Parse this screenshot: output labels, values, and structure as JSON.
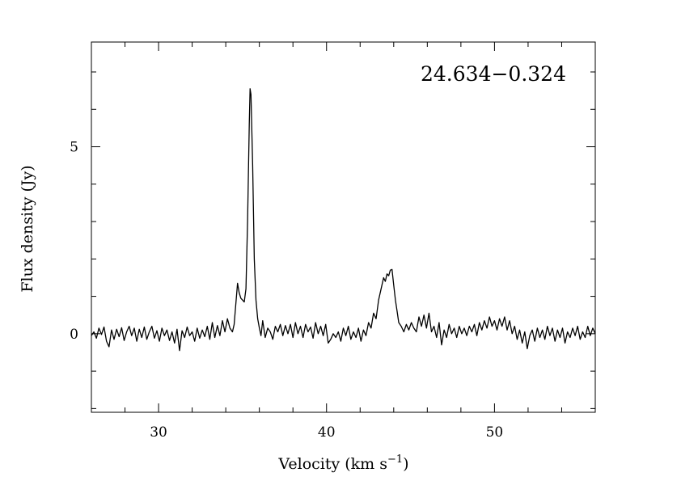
{
  "chart_data": {
    "type": "line",
    "title": "",
    "annotation": "24.634−0.324",
    "xlabel": "Velocity (km s",
    "xlabel_sup": "−1",
    "xlabel_close": ")",
    "ylabel": "Flux density (Jy)",
    "xlim": [
      26.0,
      56.0
    ],
    "ylim": [
      -2.1,
      7.8
    ],
    "xticks_major": [
      30,
      40,
      50
    ],
    "xticks_major_labels": [
      "30",
      "40",
      "50"
    ],
    "yticks_major": [
      0,
      5
    ],
    "yticks_major_labels": [
      "0",
      "5"
    ],
    "grid": false,
    "line_color": "#000000",
    "series": [
      {
        "values": [
          [
            26.0,
            -0.05
          ],
          [
            26.15,
            0.05
          ],
          [
            26.3,
            -0.12
          ],
          [
            26.45,
            0.15
          ],
          [
            26.6,
            -0.02
          ],
          [
            26.75,
            0.18
          ],
          [
            26.9,
            -0.2
          ],
          [
            27.05,
            -0.35
          ],
          [
            27.2,
            0.1
          ],
          [
            27.35,
            -0.15
          ],
          [
            27.5,
            0.12
          ],
          [
            27.65,
            -0.08
          ],
          [
            27.8,
            0.16
          ],
          [
            27.95,
            -0.18
          ],
          [
            28.1,
            0.05
          ],
          [
            28.25,
            0.2
          ],
          [
            28.4,
            -0.05
          ],
          [
            28.55,
            0.15
          ],
          [
            28.7,
            -0.2
          ],
          [
            28.85,
            0.12
          ],
          [
            29.0,
            -0.1
          ],
          [
            29.15,
            0.18
          ],
          [
            29.3,
            -0.15
          ],
          [
            29.45,
            0.05
          ],
          [
            29.6,
            0.2
          ],
          [
            29.75,
            -0.12
          ],
          [
            29.9,
            0.08
          ],
          [
            30.05,
            -0.2
          ],
          [
            30.2,
            0.15
          ],
          [
            30.35,
            -0.05
          ],
          [
            30.5,
            0.1
          ],
          [
            30.65,
            -0.18
          ],
          [
            30.8,
            0.05
          ],
          [
            30.95,
            -0.25
          ],
          [
            31.1,
            0.12
          ],
          [
            31.25,
            -0.45
          ],
          [
            31.4,
            0.08
          ],
          [
            31.55,
            -0.1
          ],
          [
            31.7,
            0.18
          ],
          [
            31.85,
            -0.05
          ],
          [
            32.0,
            0.05
          ],
          [
            32.15,
            -0.2
          ],
          [
            32.3,
            0.15
          ],
          [
            32.45,
            -0.12
          ],
          [
            32.6,
            0.1
          ],
          [
            32.75,
            -0.08
          ],
          [
            32.9,
            0.2
          ],
          [
            33.05,
            -0.15
          ],
          [
            33.2,
            0.3
          ],
          [
            33.35,
            -0.1
          ],
          [
            33.5,
            0.22
          ],
          [
            33.65,
            -0.05
          ],
          [
            33.8,
            0.35
          ],
          [
            33.95,
            0.05
          ],
          [
            34.1,
            0.4
          ],
          [
            34.25,
            0.15
          ],
          [
            34.4,
            0.05
          ],
          [
            34.5,
            0.25
          ],
          [
            34.6,
            0.8
          ],
          [
            34.7,
            1.35
          ],
          [
            34.8,
            1.1
          ],
          [
            34.9,
            0.95
          ],
          [
            35.0,
            0.9
          ],
          [
            35.1,
            0.85
          ],
          [
            35.2,
            1.2
          ],
          [
            35.3,
            3.0
          ],
          [
            35.4,
            5.6
          ],
          [
            35.45,
            6.55
          ],
          [
            35.5,
            6.4
          ],
          [
            35.6,
            4.5
          ],
          [
            35.7,
            2.0
          ],
          [
            35.8,
            0.9
          ],
          [
            35.9,
            0.4
          ],
          [
            36.0,
            0.15
          ],
          [
            36.1,
            -0.05
          ],
          [
            36.2,
            0.35
          ],
          [
            36.35,
            -0.1
          ],
          [
            36.5,
            0.15
          ],
          [
            36.65,
            0.05
          ],
          [
            36.8,
            -0.15
          ],
          [
            36.95,
            0.2
          ],
          [
            37.1,
            0.05
          ],
          [
            37.25,
            0.25
          ],
          [
            37.4,
            -0.05
          ],
          [
            37.55,
            0.22
          ],
          [
            37.7,
            0.0
          ],
          [
            37.85,
            0.25
          ],
          [
            38.0,
            -0.1
          ],
          [
            38.15,
            0.3
          ],
          [
            38.3,
            0.0
          ],
          [
            38.45,
            0.2
          ],
          [
            38.6,
            -0.1
          ],
          [
            38.75,
            0.25
          ],
          [
            38.9,
            0.05
          ],
          [
            39.05,
            0.18
          ],
          [
            39.2,
            -0.12
          ],
          [
            39.35,
            0.3
          ],
          [
            39.5,
            0.0
          ],
          [
            39.65,
            0.2
          ],
          [
            39.8,
            -0.05
          ],
          [
            39.95,
            0.25
          ],
          [
            40.1,
            -0.25
          ],
          [
            40.25,
            -0.15
          ],
          [
            40.4,
            0.0
          ],
          [
            40.55,
            -0.1
          ],
          [
            40.7,
            0.05
          ],
          [
            40.85,
            -0.2
          ],
          [
            41.0,
            0.15
          ],
          [
            41.15,
            -0.05
          ],
          [
            41.3,
            0.2
          ],
          [
            41.45,
            -0.15
          ],
          [
            41.6,
            0.05
          ],
          [
            41.75,
            -0.1
          ],
          [
            41.9,
            0.15
          ],
          [
            42.05,
            -0.2
          ],
          [
            42.2,
            0.1
          ],
          [
            42.35,
            -0.05
          ],
          [
            42.5,
            0.3
          ],
          [
            42.65,
            0.15
          ],
          [
            42.8,
            0.55
          ],
          [
            42.95,
            0.4
          ],
          [
            43.1,
            0.9
          ],
          [
            43.25,
            1.2
          ],
          [
            43.4,
            1.5
          ],
          [
            43.5,
            1.4
          ],
          [
            43.6,
            1.6
          ],
          [
            43.7,
            1.55
          ],
          [
            43.8,
            1.7
          ],
          [
            43.9,
            1.72
          ],
          [
            44.0,
            1.3
          ],
          [
            44.1,
            0.9
          ],
          [
            44.2,
            0.6
          ],
          [
            44.3,
            0.3
          ],
          [
            44.45,
            0.2
          ],
          [
            44.6,
            0.05
          ],
          [
            44.75,
            0.25
          ],
          [
            44.9,
            0.1
          ],
          [
            45.05,
            0.3
          ],
          [
            45.2,
            0.15
          ],
          [
            45.35,
            0.05
          ],
          [
            45.5,
            0.45
          ],
          [
            45.65,
            0.2
          ],
          [
            45.8,
            0.5
          ],
          [
            45.95,
            0.15
          ],
          [
            46.1,
            0.55
          ],
          [
            46.25,
            0.05
          ],
          [
            46.4,
            0.2
          ],
          [
            46.55,
            -0.1
          ],
          [
            46.7,
            0.3
          ],
          [
            46.85,
            -0.3
          ],
          [
            47.0,
            0.1
          ],
          [
            47.15,
            -0.1
          ],
          [
            47.3,
            0.25
          ],
          [
            47.45,
            0.0
          ],
          [
            47.6,
            0.15
          ],
          [
            47.75,
            -0.1
          ],
          [
            47.9,
            0.2
          ],
          [
            48.05,
            0.0
          ],
          [
            48.2,
            0.15
          ],
          [
            48.35,
            -0.05
          ],
          [
            48.5,
            0.2
          ],
          [
            48.65,
            0.05
          ],
          [
            48.8,
            0.25
          ],
          [
            48.95,
            -0.05
          ],
          [
            49.1,
            0.3
          ],
          [
            49.25,
            0.1
          ],
          [
            49.4,
            0.35
          ],
          [
            49.55,
            0.15
          ],
          [
            49.7,
            0.45
          ],
          [
            49.85,
            0.2
          ],
          [
            50.0,
            0.35
          ],
          [
            50.15,
            0.1
          ],
          [
            50.3,
            0.4
          ],
          [
            50.45,
            0.2
          ],
          [
            50.6,
            0.45
          ],
          [
            50.75,
            0.1
          ],
          [
            50.9,
            0.35
          ],
          [
            51.05,
            0.0
          ],
          [
            51.2,
            0.2
          ],
          [
            51.35,
            -0.15
          ],
          [
            51.5,
            0.1
          ],
          [
            51.65,
            -0.25
          ],
          [
            51.8,
            0.05
          ],
          [
            51.95,
            -0.4
          ],
          [
            52.1,
            -0.05
          ],
          [
            52.25,
            0.1
          ],
          [
            52.4,
            -0.2
          ],
          [
            52.55,
            0.15
          ],
          [
            52.7,
            -0.1
          ],
          [
            52.85,
            0.1
          ],
          [
            53.0,
            -0.15
          ],
          [
            53.15,
            0.2
          ],
          [
            53.3,
            -0.05
          ],
          [
            53.45,
            0.15
          ],
          [
            53.6,
            -0.2
          ],
          [
            53.75,
            0.1
          ],
          [
            53.9,
            -0.1
          ],
          [
            54.05,
            0.15
          ],
          [
            54.2,
            -0.25
          ],
          [
            54.35,
            0.05
          ],
          [
            54.5,
            -0.1
          ],
          [
            54.65,
            0.15
          ],
          [
            54.8,
            -0.05
          ],
          [
            54.95,
            0.2
          ],
          [
            55.1,
            -0.15
          ],
          [
            55.25,
            0.05
          ],
          [
            55.4,
            -0.1
          ],
          [
            55.55,
            0.2
          ],
          [
            55.7,
            -0.05
          ],
          [
            55.85,
            0.15
          ],
          [
            56.0,
            0.0
          ]
        ]
      }
    ]
  }
}
